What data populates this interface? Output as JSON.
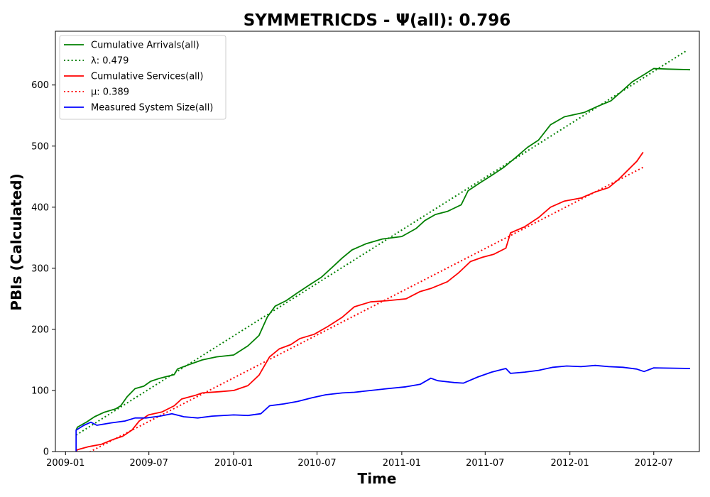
{
  "chart_data": {
    "type": "line",
    "title": "SYMMETRICDS -  Ψ(all): 0.796",
    "xlabel": "Time",
    "ylabel": "PBIs (Calculated)",
    "xlim": [
      "2008-12-10",
      "2012-10-08"
    ],
    "ylim": [
      0,
      688
    ],
    "x_ticks": [
      {
        "date": "2009-01-01",
        "label": "2009-01"
      },
      {
        "date": "2009-07-01",
        "label": "2009-07"
      },
      {
        "date": "2010-01-01",
        "label": "2010-01"
      },
      {
        "date": "2010-07-01",
        "label": "2010-07"
      },
      {
        "date": "2011-01-01",
        "label": "2011-01"
      },
      {
        "date": "2011-07-01",
        "label": "2011-07"
      },
      {
        "date": "2012-01-01",
        "label": "2012-01"
      },
      {
        "date": "2012-07-01",
        "label": "2012-07"
      }
    ],
    "y_ticks": [
      0,
      100,
      200,
      300,
      400,
      500,
      600
    ],
    "grid": false,
    "legend_position": "top-left",
    "series": [
      {
        "name": "Cumulative Arrivals(all)",
        "color": "#008000",
        "style": "solid",
        "points": [
          [
            "2009-01-24",
            35
          ],
          [
            "2009-01-27",
            40
          ],
          [
            "2009-02-15",
            48
          ],
          [
            "2009-03-05",
            57
          ],
          [
            "2009-03-25",
            64
          ],
          [
            "2009-04-20",
            70
          ],
          [
            "2009-05-01",
            75
          ],
          [
            "2009-05-15",
            90
          ],
          [
            "2009-06-01",
            103
          ],
          [
            "2009-06-20",
            107
          ],
          [
            "2009-07-05",
            115
          ],
          [
            "2009-07-25",
            120
          ],
          [
            "2009-08-25",
            126
          ],
          [
            "2009-09-01",
            135
          ],
          [
            "2009-09-25",
            142
          ],
          [
            "2009-10-25",
            150
          ],
          [
            "2009-11-25",
            155
          ],
          [
            "2010-01-01",
            158
          ],
          [
            "2010-02-01",
            173
          ],
          [
            "2010-02-25",
            190
          ],
          [
            "2010-03-15",
            220
          ],
          [
            "2010-04-01",
            238
          ],
          [
            "2010-04-25",
            247
          ],
          [
            "2010-05-20",
            260
          ],
          [
            "2010-06-15",
            273
          ],
          [
            "2010-07-10",
            285
          ],
          [
            "2010-08-05",
            303
          ],
          [
            "2010-08-25",
            317
          ],
          [
            "2010-09-15",
            330
          ],
          [
            "2010-10-15",
            340
          ],
          [
            "2010-11-20",
            348
          ],
          [
            "2011-01-01",
            352
          ],
          [
            "2011-02-01",
            365
          ],
          [
            "2011-02-20",
            378
          ],
          [
            "2011-03-15",
            388
          ],
          [
            "2011-04-10",
            393
          ],
          [
            "2011-05-10",
            404
          ],
          [
            "2011-05-25",
            427
          ],
          [
            "2011-06-20",
            440
          ],
          [
            "2011-07-15",
            452
          ],
          [
            "2011-08-10",
            465
          ],
          [
            "2011-09-05",
            481
          ],
          [
            "2011-10-01",
            498
          ],
          [
            "2011-10-25",
            510
          ],
          [
            "2011-11-20",
            535
          ],
          [
            "2011-12-20",
            548
          ],
          [
            "2012-02-01",
            555
          ],
          [
            "2012-03-01",
            565
          ],
          [
            "2012-03-30",
            574
          ],
          [
            "2012-04-20",
            588
          ],
          [
            "2012-05-15",
            605
          ],
          [
            "2012-06-10",
            617
          ],
          [
            "2012-07-01",
            627
          ],
          [
            "2012-08-01",
            626
          ],
          [
            "2012-09-18",
            625
          ]
        ]
      },
      {
        "name": "λ: 0.479",
        "color": "#008000",
        "style": "dotted",
        "points": [
          [
            "2009-01-24",
            27
          ],
          [
            "2012-09-10",
            656
          ]
        ]
      },
      {
        "name": "Cumulative Services(all)",
        "color": "#ff0000",
        "style": "solid",
        "points": [
          [
            "2009-01-24",
            0
          ],
          [
            "2009-01-27",
            3
          ],
          [
            "2009-02-20",
            8
          ],
          [
            "2009-03-20",
            12
          ],
          [
            "2009-04-15",
            20
          ],
          [
            "2009-05-05",
            25
          ],
          [
            "2009-05-25",
            35
          ],
          [
            "2009-06-10",
            50
          ],
          [
            "2009-06-30",
            60
          ],
          [
            "2009-07-30",
            65
          ],
          [
            "2009-08-25",
            75
          ],
          [
            "2009-09-10",
            86
          ],
          [
            "2009-10-10",
            92
          ],
          [
            "2009-10-25",
            96
          ],
          [
            "2009-12-01",
            98
          ],
          [
            "2010-01-01",
            100
          ],
          [
            "2010-02-01",
            108
          ],
          [
            "2010-02-25",
            125
          ],
          [
            "2010-03-20",
            155
          ],
          [
            "2010-04-10",
            168
          ],
          [
            "2010-05-05",
            175
          ],
          [
            "2010-05-25",
            185
          ],
          [
            "2010-06-25",
            192
          ],
          [
            "2010-07-25",
            205
          ],
          [
            "2010-08-25",
            220
          ],
          [
            "2010-09-20",
            237
          ],
          [
            "2010-10-25",
            245
          ],
          [
            "2010-12-01",
            247
          ],
          [
            "2011-01-10",
            250
          ],
          [
            "2011-02-10",
            262
          ],
          [
            "2011-03-05",
            267
          ],
          [
            "2011-04-10",
            278
          ],
          [
            "2011-05-05",
            293
          ],
          [
            "2011-05-30",
            311
          ],
          [
            "2011-06-25",
            318
          ],
          [
            "2011-07-20",
            323
          ],
          [
            "2011-08-15",
            333
          ],
          [
            "2011-08-25",
            358
          ],
          [
            "2011-09-25",
            368
          ],
          [
            "2011-10-25",
            383
          ],
          [
            "2011-11-20",
            400
          ],
          [
            "2011-12-20",
            410
          ],
          [
            "2012-01-25",
            415
          ],
          [
            "2012-02-25",
            425
          ],
          [
            "2012-03-25",
            432
          ],
          [
            "2012-04-15",
            445
          ],
          [
            "2012-05-05",
            460
          ],
          [
            "2012-05-25",
            475
          ],
          [
            "2012-06-08",
            490
          ]
        ]
      },
      {
        "name": "μ: 0.389",
        "color": "#ff0000",
        "style": "dotted",
        "points": [
          [
            "2009-01-24",
            -12
          ],
          [
            "2012-06-10",
            466
          ]
        ]
      },
      {
        "name": "Measured System Size(all)",
        "color": "#0000ff",
        "style": "solid",
        "points": [
          [
            "2009-01-24",
            0
          ],
          [
            "2009-01-24",
            35
          ],
          [
            "2009-02-10",
            43
          ],
          [
            "2009-02-25",
            48
          ],
          [
            "2009-03-10",
            43
          ],
          [
            "2009-04-10",
            47
          ],
          [
            "2009-05-10",
            50
          ],
          [
            "2009-06-01",
            55
          ],
          [
            "2009-06-25",
            55
          ],
          [
            "2009-07-25",
            58
          ],
          [
            "2009-08-20",
            62
          ],
          [
            "2009-09-15",
            57
          ],
          [
            "2009-10-15",
            55
          ],
          [
            "2009-11-15",
            58
          ],
          [
            "2010-01-01",
            60
          ],
          [
            "2010-02-01",
            59
          ],
          [
            "2010-03-01",
            62
          ],
          [
            "2010-03-20",
            75
          ],
          [
            "2010-04-20",
            78
          ],
          [
            "2010-05-20",
            82
          ],
          [
            "2010-06-20",
            88
          ],
          [
            "2010-07-20",
            93
          ],
          [
            "2010-08-25",
            96
          ],
          [
            "2010-09-20",
            97
          ],
          [
            "2010-10-25",
            100
          ],
          [
            "2010-12-01",
            103
          ],
          [
            "2011-01-10",
            106
          ],
          [
            "2011-02-10",
            110
          ],
          [
            "2011-03-05",
            120
          ],
          [
            "2011-03-20",
            116
          ],
          [
            "2011-04-25",
            113
          ],
          [
            "2011-05-15",
            112
          ],
          [
            "2011-06-15",
            122
          ],
          [
            "2011-07-15",
            130
          ],
          [
            "2011-08-15",
            136
          ],
          [
            "2011-08-25",
            128
          ],
          [
            "2011-09-25",
            130
          ],
          [
            "2011-10-25",
            133
          ],
          [
            "2011-11-25",
            138
          ],
          [
            "2011-12-25",
            140
          ],
          [
            "2012-01-25",
            139
          ],
          [
            "2012-02-25",
            141
          ],
          [
            "2012-03-25",
            139
          ],
          [
            "2012-04-25",
            138
          ],
          [
            "2012-05-25",
            135
          ],
          [
            "2012-06-10",
            131
          ],
          [
            "2012-07-01",
            137
          ],
          [
            "2012-09-18",
            136
          ]
        ]
      }
    ]
  }
}
